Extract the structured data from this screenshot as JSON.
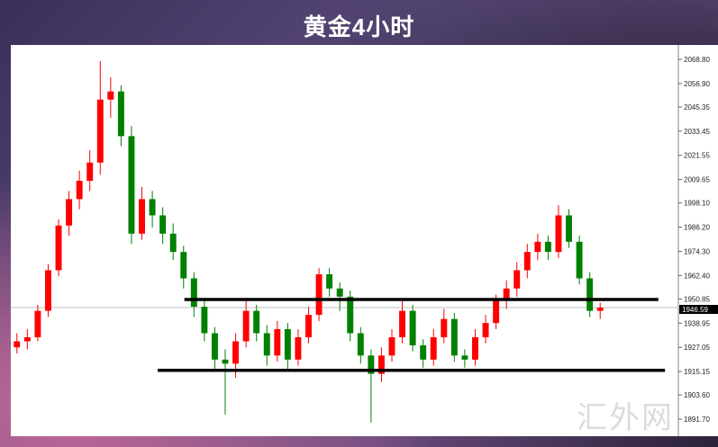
{
  "title": "黄金4小时",
  "watermark": "汇外网",
  "colors": {
    "up": "#ff0000",
    "down": "#008000",
    "level_line": "#000000",
    "current_price_line": "#c0c0c0"
  },
  "chart_data": {
    "type": "candlestick",
    "title": "黄金4小时",
    "ylim": [
      1885,
      2072
    ],
    "y_ticks": [
      "2068.80",
      "2056.90",
      "2045.35",
      "2033.45",
      "2021.55",
      "2009.65",
      "1998.10",
      "1986.20",
      "1974.30",
      "1962.40",
      "1950.85",
      "1938.95",
      "1927.05",
      "1915.15",
      "1903.60",
      "1891.70"
    ],
    "current_price": "1946.59",
    "levels": [
      {
        "price": 1950.6,
        "from": 0.26,
        "to": 0.97
      },
      {
        "price": 1915.7,
        "from": 0.22,
        "to": 0.98
      }
    ],
    "grid": false,
    "candles": [
      [
        1927,
        1934,
        1924,
        1930
      ],
      [
        1930,
        1936,
        1926,
        1932
      ],
      [
        1932,
        1948,
        1930,
        1945
      ],
      [
        1945,
        1968,
        1942,
        1965
      ],
      [
        1965,
        1990,
        1962,
        1987
      ],
      [
        1987,
        2004,
        1982,
        2000
      ],
      [
        2000,
        2014,
        1995,
        2009
      ],
      [
        2009,
        2024,
        2004,
        2018
      ],
      [
        2018,
        2068,
        2012,
        2049
      ],
      [
        2049,
        2060,
        2040,
        2053
      ],
      [
        2053,
        2056,
        2026,
        2031
      ],
      [
        2031,
        2036,
        1978,
        1983
      ],
      [
        1983,
        2006,
        1980,
        2000
      ],
      [
        2000,
        2004,
        1986,
        1992
      ],
      [
        1992,
        1996,
        1978,
        1983
      ],
      [
        1983,
        1988,
        1970,
        1974
      ],
      [
        1974,
        1977,
        1956,
        1961
      ],
      [
        1961,
        1964,
        1942,
        1947
      ],
      [
        1947,
        1950,
        1930,
        1934
      ],
      [
        1934,
        1937,
        1915,
        1921
      ],
      [
        1921,
        1926,
        1894,
        1919
      ],
      [
        1919,
        1934,
        1912,
        1930
      ],
      [
        1930,
        1950,
        1927,
        1945
      ],
      [
        1945,
        1948,
        1930,
        1934
      ],
      [
        1934,
        1938,
        1918,
        1923
      ],
      [
        1923,
        1940,
        1920,
        1936
      ],
      [
        1936,
        1939,
        1916,
        1921
      ],
      [
        1921,
        1936,
        1918,
        1932
      ],
      [
        1932,
        1947,
        1929,
        1943
      ],
      [
        1943,
        1966,
        1940,
        1963
      ],
      [
        1963,
        1966,
        1952,
        1956
      ],
      [
        1956,
        1959,
        1945,
        1952
      ],
      [
        1952,
        1955,
        1930,
        1934
      ],
      [
        1934,
        1937,
        1919,
        1923
      ],
      [
        1923,
        1926,
        1890,
        1914
      ],
      [
        1914,
        1927,
        1910,
        1923
      ],
      [
        1923,
        1936,
        1920,
        1932
      ],
      [
        1932,
        1950,
        1929,
        1945
      ],
      [
        1945,
        1948,
        1925,
        1928
      ],
      [
        1928,
        1931,
        1917,
        1921
      ],
      [
        1921,
        1936,
        1918,
        1932
      ],
      [
        1932,
        1946,
        1929,
        1941
      ],
      [
        1941,
        1944,
        1920,
        1923
      ],
      [
        1923,
        1926,
        1917,
        1921
      ],
      [
        1921,
        1936,
        1918,
        1932
      ],
      [
        1932,
        1943,
        1929,
        1939
      ],
      [
        1939,
        1953,
        1936,
        1950
      ],
      [
        1950,
        1960,
        1946,
        1956
      ],
      [
        1956,
        1969,
        1952,
        1965
      ],
      [
        1965,
        1978,
        1961,
        1974
      ],
      [
        1974,
        1983,
        1970,
        1979
      ],
      [
        1979,
        1982,
        1970,
        1974
      ],
      [
        1974,
        1997,
        1971,
        1992
      ],
      [
        1992,
        1995,
        1976,
        1979
      ],
      [
        1979,
        1982,
        1958,
        1961
      ],
      [
        1961,
        1964,
        1942,
        1945
      ],
      [
        1945,
        1949,
        1941,
        1946.59
      ]
    ]
  }
}
